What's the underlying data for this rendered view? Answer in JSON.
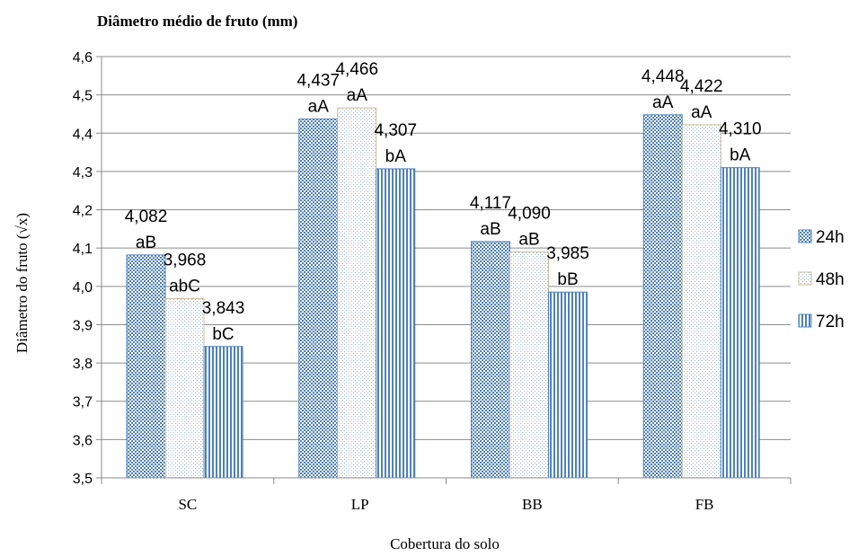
{
  "chart_data": {
    "type": "bar",
    "title": "Diâmetro médio de fruto (mm)",
    "xlabel": "Cobertura do solo",
    "ylabel": "Diâmetro do fruto (√x)",
    "categories": [
      "SC",
      "LP",
      "BB",
      "FB"
    ],
    "ylim": [
      3.5,
      4.6
    ],
    "yticks": [
      "3,5",
      "3,6",
      "3,7",
      "3,8",
      "3,9",
      "4,0",
      "4,1",
      "4,2",
      "4,3",
      "4,4",
      "4,5",
      "4,6"
    ],
    "grid": true,
    "legend_position": "right",
    "series": [
      {
        "name": "24h",
        "values": [
          4.082,
          4.437,
          4.117,
          4.448
        ],
        "value_labels": [
          "4,082",
          "4,437",
          "4,117",
          "4,448"
        ],
        "letters": [
          "aB",
          "aA",
          "aB",
          "aA"
        ],
        "color": "#4F81BD",
        "pattern": "crosshatch"
      },
      {
        "name": "48h",
        "values": [
          3.968,
          4.466,
          4.09,
          4.422
        ],
        "value_labels": [
          "3,968",
          "4,466",
          "4,090",
          "4,422"
        ],
        "letters": [
          "abC",
          "aA",
          "aB",
          "aA"
        ],
        "color": "#C4BD97",
        "pattern": "dots"
      },
      {
        "name": "72h",
        "values": [
          3.843,
          4.307,
          3.985,
          4.31
        ],
        "value_labels": [
          "3,843",
          "4,307",
          "3,985",
          "4,310"
        ],
        "letters": [
          "bC",
          "bA",
          "bB",
          "bA"
        ],
        "color": "#4F81BD",
        "pattern": "vertical-stripes"
      }
    ]
  }
}
